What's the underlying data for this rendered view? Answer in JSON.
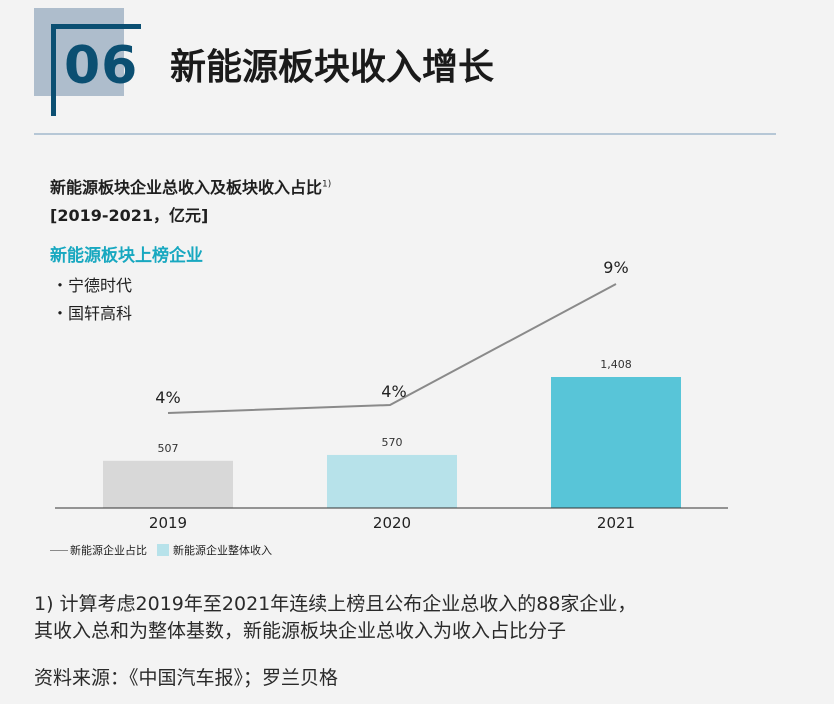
{
  "header": {
    "number": "06",
    "title": "新能源板块收入增长"
  },
  "chart_title": "新能源板块企业总收入及板块收入占比",
  "chart_title_note": "1)",
  "chart_units": "[2019-2021，亿元]",
  "list": {
    "title": "新能源板块上榜企业",
    "items": [
      "・宁德时代",
      "・国轩高科"
    ]
  },
  "chart_data": {
    "type": "bar",
    "categories": [
      "2019",
      "2020",
      "2021"
    ],
    "series": [
      {
        "name": "新能源企业整体收入",
        "values": [
          507,
          570,
          1408
        ],
        "labels": [
          "507",
          "570",
          "1,408"
        ],
        "colors": [
          "#d8d8d8",
          "#b7e2ea",
          "#58c5d8"
        ]
      },
      {
        "name": "新能源企业占比",
        "type": "line",
        "values": [
          4,
          4,
          9
        ],
        "labels": [
          "4%",
          "4%",
          "9%"
        ],
        "color": "#8a8a8a"
      }
    ],
    "ylim": [
      0,
      1408
    ]
  },
  "legend": {
    "line_label": "新能源企业占比",
    "bar_label": "新能源企业整体收入"
  },
  "footnote": {
    "line1": "1) 计算考虑2019年至2021年连续上榜且公布企业总收入的88家企业，",
    "line2": "其收入总和为整体基数，新能源板块企业总收入为收入占比分子"
  },
  "source": "资料来源：《中国汽车报》；罗兰贝格"
}
